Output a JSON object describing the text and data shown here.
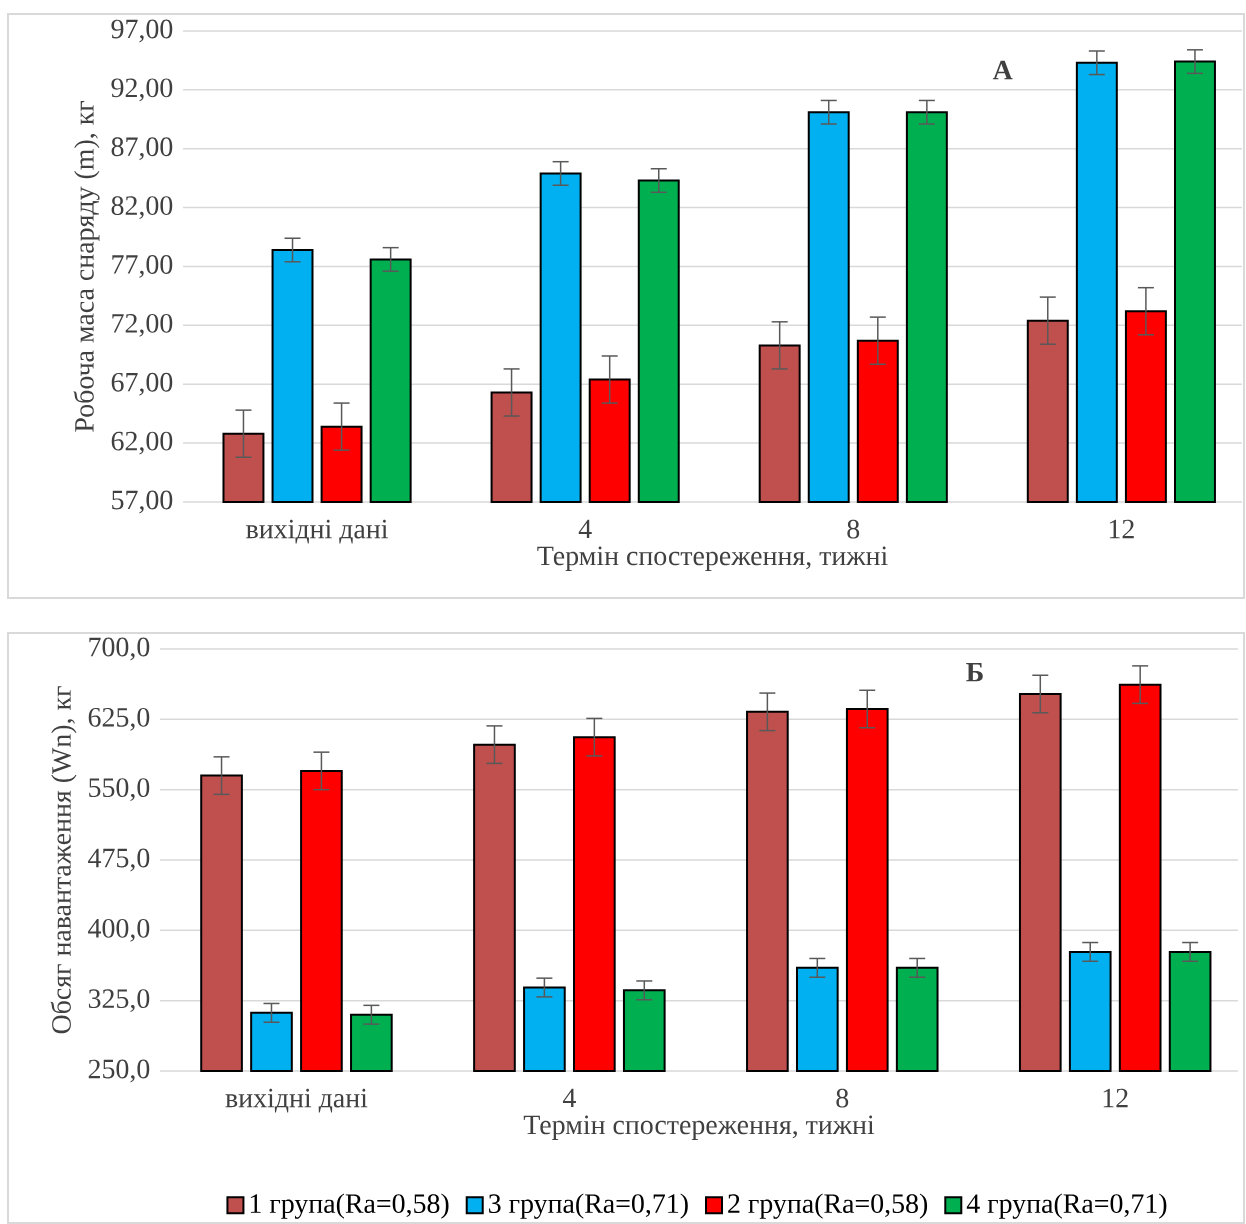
{
  "chart_data": [
    {
      "type": "bar",
      "categories": [
        "вихідні дані",
        "4",
        "8",
        "12"
      ],
      "xlabel": "Термін спостереження, тижні",
      "ylabel": "Робоча маса снаряду (m), кг",
      "series": [
        {
          "color": "#c0504d",
          "values": [
            62.8,
            66.3,
            70.3,
            72.4
          ],
          "errors": [
            2,
            2,
            2,
            2
          ]
        },
        {
          "color": "#00b0f0",
          "values": [
            78.4,
            84.9,
            90.1,
            94.3
          ],
          "errors": [
            1,
            1,
            1,
            1
          ]
        },
        {
          "color": "#ff0000",
          "values": [
            63.4,
            67.4,
            70.7,
            73.2
          ],
          "errors": [
            2,
            2,
            2,
            2
          ]
        },
        {
          "color": "#00b050",
          "values": [
            77.6,
            84.3,
            90.1,
            94.4
          ],
          "errors": [
            1,
            1,
            1,
            1
          ]
        }
      ],
      "ylim": [
        57,
        97
      ],
      "yticks": [
        {
          "value": 57,
          "label": "57,00"
        },
        {
          "value": 62,
          "label": "62,00"
        },
        {
          "value": 67,
          "label": "67,00"
        },
        {
          "value": 72,
          "label": "72,00"
        },
        {
          "value": 77,
          "label": "77,00"
        },
        {
          "value": 82,
          "label": "82,00"
        },
        {
          "value": 87,
          "label": "87,00"
        },
        {
          "value": 92,
          "label": "92,00"
        },
        {
          "value": 97,
          "label": "97,00"
        }
      ],
      "grid": "y",
      "legend": false,
      "annotations": [
        "А"
      ]
    },
    {
      "type": "bar",
      "categories": [
        "вихідні дані",
        "4",
        "8",
        "12"
      ],
      "xlabel": "Термін спостереження, тижні",
      "ylabel": "Обсяг навантаження (Wn), кг",
      "series": [
        {
          "name": "1 група(Ra=0,58)",
          "color": "#c0504d",
          "values": [
            565,
            598,
            633,
            652
          ],
          "errors": [
            20,
            20,
            20,
            20
          ]
        },
        {
          "name": "3 група(Ra=0,71)",
          "color": "#00b0f0",
          "values": [
            312,
            339,
            360,
            377
          ],
          "errors": [
            10,
            10,
            10,
            10
          ]
        },
        {
          "name": "2 група(Ra=0,58)",
          "color": "#ff0000",
          "values": [
            570,
            606,
            636,
            662
          ],
          "errors": [
            20,
            20,
            20,
            20
          ]
        },
        {
          "name": "4 група(Ra=0,71)",
          "color": "#00b050",
          "values": [
            310,
            336,
            360,
            377
          ],
          "errors": [
            10,
            10,
            10,
            10
          ]
        }
      ],
      "ylim": [
        250,
        700
      ],
      "yticks": [
        {
          "value": 250,
          "label": "250,0"
        },
        {
          "value": 325,
          "label": "325,0"
        },
        {
          "value": 400,
          "label": "400,0"
        },
        {
          "value": 475,
          "label": "475,0"
        },
        {
          "value": 550,
          "label": "550,0"
        },
        {
          "value": 625,
          "label": "625,0"
        },
        {
          "value": 700,
          "label": "700,0"
        }
      ],
      "grid": "y",
      "legend": "bottom",
      "annotations": [
        "Б"
      ]
    }
  ]
}
